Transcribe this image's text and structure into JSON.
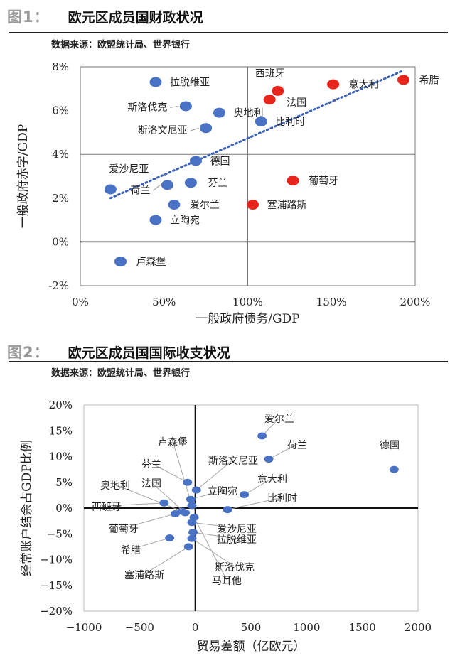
{
  "figure1": {
    "fig_number": "图1：",
    "title": "欧元区成员国财政状况",
    "source": "数据来源：欧盟统计局、世界银行",
    "chart_data": {
      "type": "scatter",
      "xlabel": "一般政府债务/GDP",
      "ylabel": "一般政府赤字/GDP",
      "xlim": [
        0,
        200
      ],
      "ylim": [
        -2,
        8
      ],
      "x_ticks": [
        "0%",
        "50%",
        "100%",
        "150%",
        "200%"
      ],
      "y_ticks": [
        "8%",
        "6%",
        "4%",
        "2%",
        "0%",
        "-2%"
      ],
      "grid": false,
      "trendline": {
        "style": "dotted",
        "color": "#3b62b4",
        "x": [
          18,
          192
        ],
        "y": [
          2.0,
          7.8
        ]
      },
      "colors": {
        "blue": "#4a72c4",
        "red": "#e8251c"
      },
      "points": [
        {
          "label": "拉脱维亚",
          "x": 45,
          "y": 7.3,
          "color": "blue"
        },
        {
          "label": "斯洛伐克",
          "x": 63,
          "y": 6.2,
          "color": "blue"
        },
        {
          "label": "奥地利",
          "x": 83,
          "y": 5.9,
          "color": "blue"
        },
        {
          "label": "斯洛文尼亚",
          "x": 75,
          "y": 5.2,
          "color": "blue"
        },
        {
          "label": "比利时",
          "x": 108,
          "y": 5.5,
          "color": "blue"
        },
        {
          "label": "德国",
          "x": 69,
          "y": 3.7,
          "color": "blue"
        },
        {
          "label": "爱沙尼亚",
          "x": 18,
          "y": 2.4,
          "color": "blue"
        },
        {
          "label": "荷兰",
          "x": 52,
          "y": 2.6,
          "color": "blue"
        },
        {
          "label": "芬兰",
          "x": 66,
          "y": 2.7,
          "color": "blue"
        },
        {
          "label": "爱尔兰",
          "x": 56,
          "y": 1.7,
          "color": "blue"
        },
        {
          "label": "立陶宛",
          "x": 45,
          "y": 1.0,
          "color": "blue"
        },
        {
          "label": "卢森堡",
          "x": 24,
          "y": -0.9,
          "color": "blue"
        },
        {
          "label": "西班牙",
          "x": 118,
          "y": 6.9,
          "color": "red"
        },
        {
          "label": "法国",
          "x": 113,
          "y": 6.5,
          "color": "red"
        },
        {
          "label": "意大利",
          "x": 151,
          "y": 7.2,
          "color": "red"
        },
        {
          "label": "希腊",
          "x": 193,
          "y": 7.4,
          "color": "red"
        },
        {
          "label": "葡萄牙",
          "x": 127,
          "y": 2.8,
          "color": "red"
        },
        {
          "label": "塞浦路斯",
          "x": 103,
          "y": 1.7,
          "color": "red"
        }
      ]
    }
  },
  "figure2": {
    "fig_number": "图2：",
    "title": "欧元区成员国国际收支状况",
    "source": "数据来源：欧盟统计局、世界银行",
    "chart_data": {
      "type": "scatter",
      "xlabel": "贸易差额（亿欧元）",
      "ylabel": "经常账户结余占GDP比例",
      "xlim": [
        -1000,
        2000
      ],
      "ylim": [
        -20,
        20
      ],
      "x_ticks": [
        "−1000",
        "−500",
        "0",
        "500",
        "1000",
        "1500",
        "2000"
      ],
      "y_ticks": [
        "20%",
        "15%",
        "10%",
        "5%",
        "0%",
        "−5%",
        "−10%",
        "−15%",
        "−20%"
      ],
      "grid": false,
      "colors": {
        "point": "#4a72c4",
        "leader": "#a6a6a6"
      },
      "points": [
        {
          "label": "德国",
          "x": 1785,
          "y": 7.5
        },
        {
          "label": "爱尔兰",
          "x": 600,
          "y": 14.0
        },
        {
          "label": "荷兰",
          "x": 660,
          "y": 9.5
        },
        {
          "label": "意大利",
          "x": 440,
          "y": 2.6
        },
        {
          "label": "比利时",
          "x": 290,
          "y": -0.3
        },
        {
          "label": "卢森堡",
          "x": -30,
          "y": 0.5
        },
        {
          "label": "芬兰",
          "x": -70,
          "y": 5.0
        },
        {
          "label": "斯洛文尼亚",
          "x": 10,
          "y": 3.5
        },
        {
          "label": "立陶宛",
          "x": -40,
          "y": 1.7
        },
        {
          "label": "奥地利",
          "x": -120,
          "y": -0.6
        },
        {
          "label": "法国",
          "x": -90,
          "y": -0.9
        },
        {
          "label": "西班牙",
          "x": -280,
          "y": 1.0
        },
        {
          "label": "葡萄牙",
          "x": -180,
          "y": -1.1
        },
        {
          "label": "爱沙尼亚",
          "x": -30,
          "y": -2.8
        },
        {
          "label": "拉脱维亚",
          "x": -20,
          "y": -4.7
        },
        {
          "label": "希腊",
          "x": -230,
          "y": -5.8
        },
        {
          "label": "斯洛伐克",
          "x": -30,
          "y": -5.9
        },
        {
          "label": "塞浦路斯",
          "x": -60,
          "y": -7.5
        },
        {
          "label": "马耳他",
          "x": -10,
          "y": -1.8
        }
      ]
    }
  }
}
